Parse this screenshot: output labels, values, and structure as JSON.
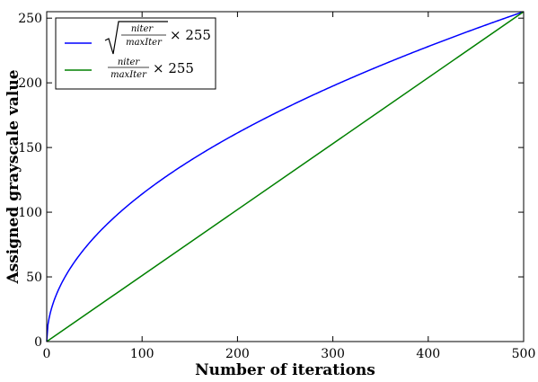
{
  "chart_data": {
    "type": "line",
    "title": "",
    "xlabel": "Number of iterations",
    "ylabel": "Assigned grayscale value",
    "xlim": [
      0,
      500
    ],
    "ylim": [
      0,
      255
    ],
    "xticks": [
      0,
      100,
      200,
      300,
      400,
      500
    ],
    "yticks": [
      0,
      50,
      100,
      150,
      200,
      250
    ],
    "grid": false,
    "legend_position": "top-left",
    "legend": {
      "numerator": "niter",
      "denominator": "maxIter",
      "multiplier": "× 255"
    },
    "series": [
      {
        "label_form": "sqrt",
        "color": "#0000ff",
        "x": [
          0,
          1,
          2,
          5,
          10,
          20,
          30,
          50,
          75,
          100,
          150,
          200,
          250,
          300,
          350,
          400,
          450,
          500
        ],
        "y": [
          0,
          11.4,
          16.1,
          25.5,
          36.1,
          51.0,
          62.5,
          80.6,
          98.8,
          114.0,
          139.7,
          161.3,
          180.3,
          197.5,
          213.3,
          228.1,
          241.9,
          255
        ]
      },
      {
        "label_form": "linear",
        "color": "#008000",
        "x": [
          0,
          500
        ],
        "y": [
          0,
          255
        ]
      }
    ]
  }
}
